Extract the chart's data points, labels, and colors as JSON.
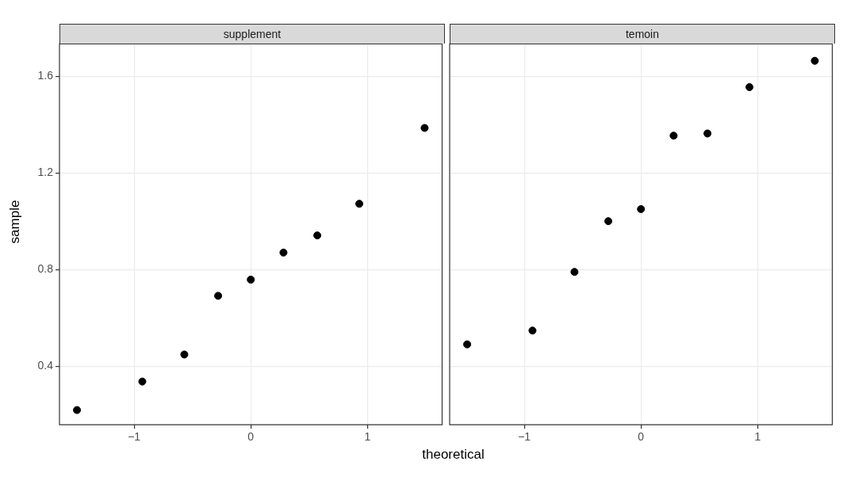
{
  "chart_data": [
    {
      "type": "scatter",
      "title": "supplement",
      "xlabel": "theoretical",
      "ylabel": "sample",
      "x": [
        -1.49,
        -0.93,
        -0.57,
        -0.28,
        0,
        0.28,
        0.57,
        0.93,
        1.49
      ],
      "series": [
        {
          "color": "#000000",
          "values": [
            0.218,
            0.336,
            0.448,
            0.691,
            0.758,
            0.87,
            0.941,
            1.072,
            1.386
          ]
        }
      ],
      "xlim": [
        -1.64,
        1.64
      ],
      "xticks": [
        -1,
        0,
        1
      ],
      "ylim": [
        0.157,
        1.734
      ],
      "yticks": [
        0.4,
        0.8,
        1.2,
        1.6
      ],
      "grid": true,
      "legend": false,
      "marker": "circle"
    },
    {
      "type": "scatter",
      "title": "temoin",
      "x": [
        -1.49,
        -0.93,
        -0.57,
        -0.28,
        0,
        0.28,
        0.57,
        0.93,
        1.49
      ],
      "series": [
        {
          "color": "#000000",
          "values": [
            0.49,
            0.547,
            0.79,
            1.0,
            1.05,
            1.354,
            1.363,
            1.555,
            1.664
          ]
        }
      ],
      "xlim": [
        -1.64,
        1.64
      ],
      "xticks": [
        -1,
        0,
        1
      ],
      "ylim": [
        0.157,
        1.734
      ],
      "yticks": [
        0.4,
        0.8,
        1.2,
        1.6
      ],
      "grid": true,
      "legend": false,
      "marker": "circle",
      "tick_labels": "x"
    }
  ]
}
